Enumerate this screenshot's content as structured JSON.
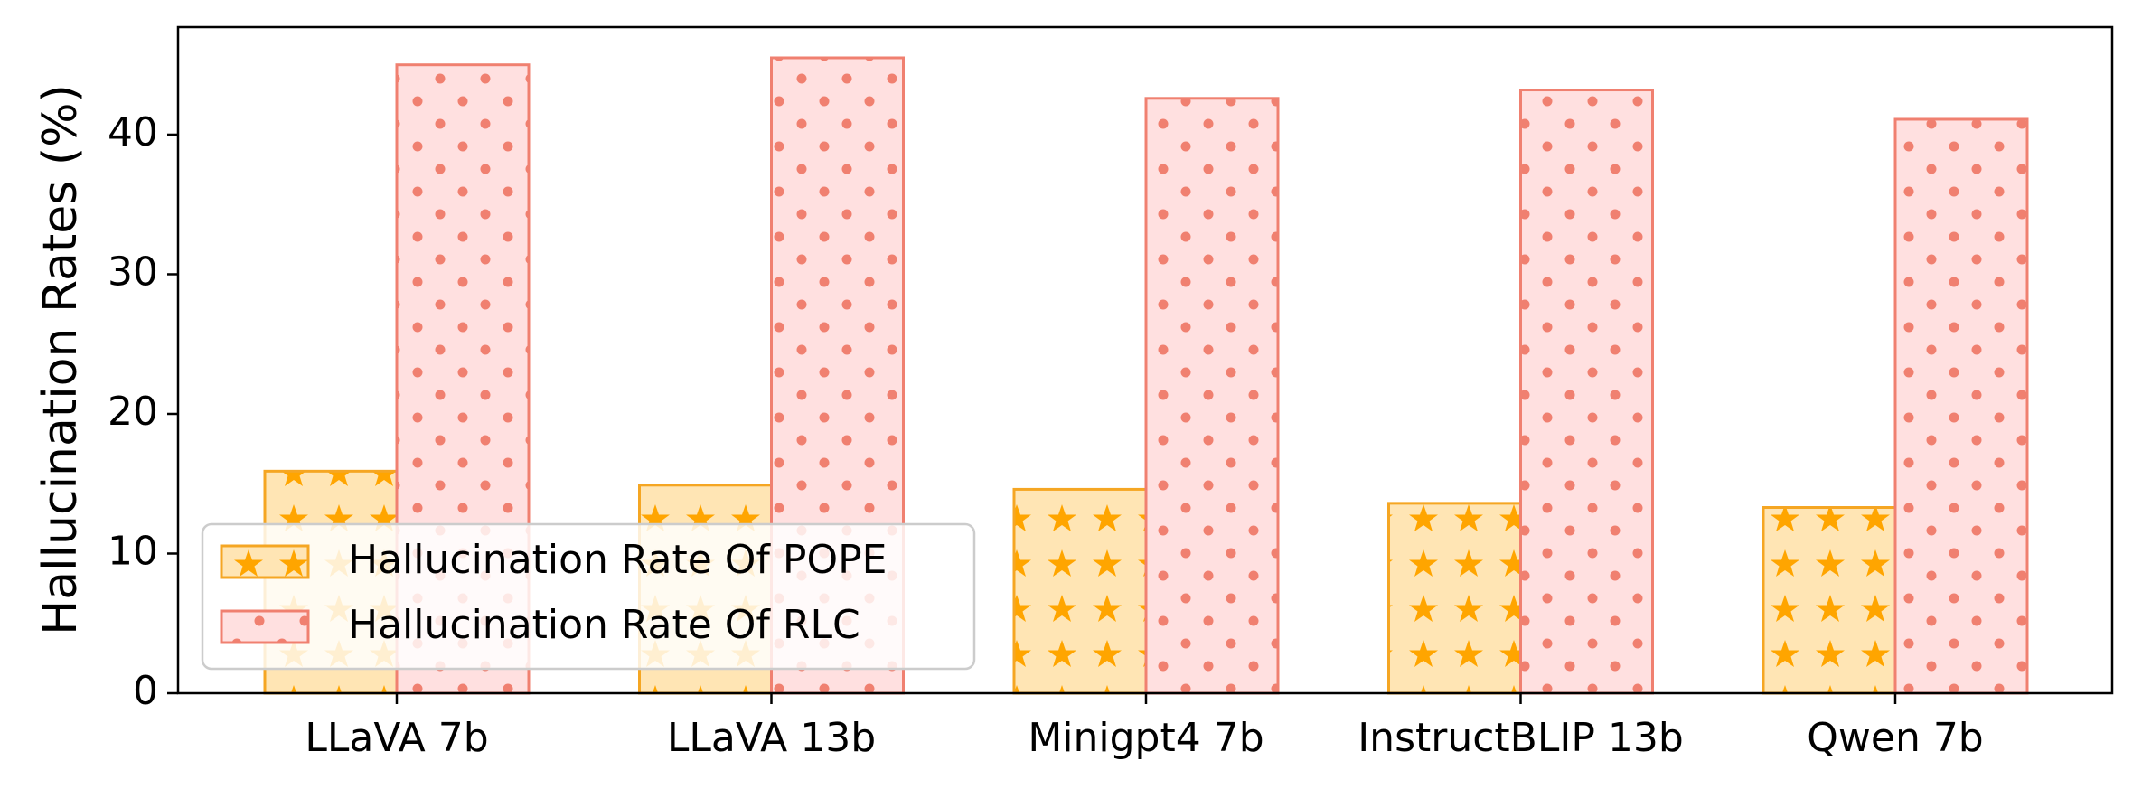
{
  "chart_data": {
    "type": "bar",
    "categories": [
      "LLaVA 7b",
      "LLaVA 13b",
      "Minigpt4 7b",
      "InstructBLIP 13b",
      "Qwen 7b"
    ],
    "series": [
      {
        "name": "Hallucination Rate Of POPE",
        "values": [
          15.9,
          14.9,
          14.6,
          13.6,
          13.3
        ],
        "fill": "#ffe5b4",
        "edge": "#f5a623",
        "hatch": "star",
        "hatch_color": "#ffa500"
      },
      {
        "name": "Hallucination Rate Of RLC",
        "values": [
          45.0,
          45.5,
          42.6,
          43.2,
          41.1
        ],
        "fill": "#ffe0e0",
        "edge": "#f08070",
        "hatch": "dot",
        "hatch_color": "#f08070"
      }
    ],
    "title": "",
    "xlabel": "",
    "ylabel": "Hallucination Rates (%)",
    "ylim": [
      0,
      47.7
    ],
    "yticks": [
      0,
      10,
      20,
      30,
      40
    ],
    "grid": false,
    "legend_position": "lower-left"
  }
}
